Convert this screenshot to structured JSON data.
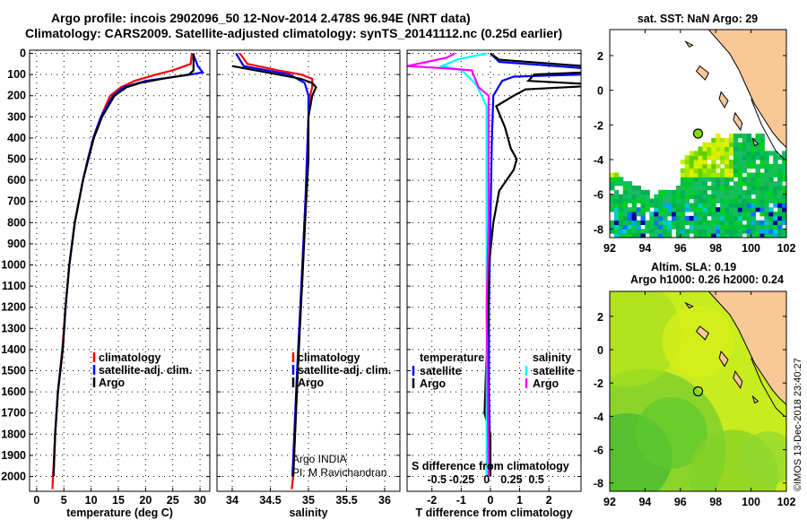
{
  "header": {
    "title1": "Argo profile: incois 2902096_50 12-Nov-2014 2.478S 96.94E (NRT data)",
    "title2": "Climatology: CARS2009. Satellite-adjusted climatology: synTS_20141112.nc (0.25d earlier)"
  },
  "credit": {
    "line1": "Argo INDIA",
    "line2": "PI: M Ravichandran"
  },
  "stamp": "©IMOS 13-Dec-2018 23:40:27",
  "colors": {
    "climatology": "#ff0000",
    "satellite": "#0000ff",
    "argo": "#000000",
    "s_sat": "#00ffff",
    "s_argo": "#ff00ff",
    "land": "#f9c896"
  },
  "chart_data": [
    {
      "type": "line",
      "name": "temperature",
      "xlabel": "temperature (deg C)",
      "ylabel": "",
      "xlim": [
        -1.3,
        31.8
      ],
      "ylim": [
        2070,
        -15
      ],
      "xticks": [
        0,
        5,
        10,
        15,
        20,
        25,
        30
      ],
      "yticks": [
        0,
        100,
        200,
        300,
        400,
        500,
        600,
        700,
        800,
        900,
        1000,
        1100,
        1200,
        1300,
        1400,
        1500,
        1600,
        1700,
        1800,
        1900,
        2000
      ],
      "legend": [
        "climatology",
        "satellite-adj. clim.",
        "Argo"
      ],
      "series": [
        {
          "name": "climatology",
          "color": "#ff0000",
          "depth": [
            0,
            50,
            80,
            100,
            130,
            160,
            200,
            300,
            400,
            500,
            600,
            800,
            1000,
            1200,
            1400,
            1600,
            1800,
            2000,
            2060
          ],
          "values": [
            28.5,
            28.3,
            25,
            22,
            18,
            15.5,
            13.5,
            11.8,
            10.4,
            9.4,
            8.5,
            7,
            6,
            5.3,
            4.7,
            3.9,
            3.4,
            3,
            2.9
          ]
        },
        {
          "name": "satellite-adj. clim.",
          "color": "#0000ff",
          "depth": [
            0,
            60,
            90,
            105,
            130,
            160,
            200,
            300,
            400,
            500,
            600,
            800,
            1000,
            1200,
            1400,
            1600,
            1800,
            2000
          ],
          "values": [
            28.7,
            29.6,
            30.5,
            27,
            20,
            16,
            14,
            11.8,
            10.4,
            9.4,
            8.5,
            7,
            6,
            5.3,
            4.8,
            3.9,
            3.4,
            3.1
          ]
        },
        {
          "name": "Argo",
          "color": "#000000",
          "depth": [
            0,
            80,
            100,
            120,
            140,
            160,
            200,
            300,
            400,
            500,
            600,
            800,
            1000,
            1200,
            1400,
            1600,
            1800,
            2000
          ],
          "values": [
            28.8,
            28.8,
            28,
            23,
            19,
            16.5,
            14.3,
            12,
            10.5,
            9.5,
            8.5,
            7,
            6,
            5.3,
            4.8,
            3.9,
            3.4,
            3.1
          ]
        }
      ]
    },
    {
      "type": "line",
      "name": "salinity",
      "xlabel": "salinity",
      "xlim": [
        33.8,
        36.2
      ],
      "ylim": [
        2070,
        -15
      ],
      "xticks": [
        34,
        34.5,
        35,
        35.5,
        36
      ],
      "legend": [
        "climatology",
        "satellite-adj. clim.",
        "Argo"
      ],
      "series": [
        {
          "name": "climatology",
          "color": "#ff0000",
          "depth": [
            0,
            50,
            80,
            100,
            120,
            160,
            200,
            300,
            500,
            700,
            1000,
            1500,
            2000,
            2060
          ],
          "values": [
            34.1,
            34.2,
            34.6,
            34.9,
            35.05,
            35.05,
            35.02,
            35.0,
            34.98,
            34.96,
            34.92,
            34.86,
            34.8,
            34.78
          ]
        },
        {
          "name": "satellite-adj. clim.",
          "color": "#0000ff",
          "depth": [
            0,
            60,
            100,
            140,
            200,
            300,
            500,
            700,
            1000,
            1500,
            2000
          ],
          "values": [
            34.05,
            34.15,
            34.75,
            34.95,
            35.0,
            35.0,
            34.98,
            34.96,
            34.92,
            34.85,
            34.79
          ]
        },
        {
          "name": "Argo",
          "color": "#000000",
          "depth": [
            60,
            100,
            120,
            140,
            160,
            200,
            300,
            500,
            700,
            1000,
            1500,
            2000
          ],
          "values": [
            34.0,
            34.6,
            34.9,
            35.05,
            35.1,
            35.05,
            35.0,
            35.0,
            34.97,
            34.93,
            34.86,
            34.8
          ]
        }
      ]
    },
    {
      "type": "line",
      "name": "difference",
      "xlabel": "T difference from climatology",
      "x2label": "S difference from climatology",
      "xlim": [
        -2.85,
        3.1
      ],
      "x2lim": [
        -0.8,
        0.95
      ],
      "ylim": [
        2070,
        -15
      ],
      "xticks": [
        -2,
        -1,
        0,
        1,
        2
      ],
      "x2ticks": [
        "-0.5",
        "-0.25",
        "0",
        "0.25",
        "0.5"
      ],
      "legend_t": {
        "title": "temperature",
        "items": [
          "satellite",
          "Argo"
        ]
      },
      "legend_s": {
        "title": "salinity",
        "items": [
          "satellite",
          "Argo"
        ]
      },
      "series": [
        {
          "name": "T satellite",
          "color": "#0000ff",
          "axis": "T",
          "depth": [
            0,
            40,
            70,
            100,
            110,
            130,
            200,
            400,
            800,
            1200,
            1600,
            2000
          ],
          "values": [
            0,
            0.3,
            3.2,
            3.2,
            0.8,
            0.4,
            0.1,
            0.05,
            0,
            -0.05,
            -0.05,
            0
          ]
        },
        {
          "name": "T Argo",
          "color": "#000000",
          "axis": "T",
          "depth": [
            0,
            30,
            60,
            90,
            100,
            130,
            150,
            170,
            200,
            250,
            350,
            450,
            500,
            550,
            650,
            800,
            1000,
            1300,
            1500,
            1700,
            1800,
            2000
          ],
          "values": [
            0,
            0.3,
            3.2,
            3.2,
            1.5,
            1.3,
            4,
            1.2,
            0.8,
            0.2,
            0.5,
            0.7,
            0.9,
            0.8,
            0.3,
            0.1,
            -0.05,
            -0.1,
            -0.15,
            -0.2,
            0,
            0
          ]
        },
        {
          "name": "S satellite",
          "color": "#00ffff",
          "axis": "S",
          "depth": [
            0,
            30,
            60,
            80,
            150,
            250,
            600,
            1200,
            2000
          ],
          "values": [
            0,
            -0.3,
            -0.45,
            -0.25,
            -0.1,
            0,
            0,
            0,
            0
          ]
        },
        {
          "name": "S Argo",
          "color": "#ff00ff",
          "axis": "S",
          "depth": [
            0,
            20,
            60,
            70,
            80,
            160,
            200,
            400,
            800,
            1200,
            2000
          ],
          "values": [
            -0.32,
            -0.4,
            -0.8,
            -0.42,
            -0.15,
            -0.08,
            0.02,
            0.02,
            0.02,
            0,
            0.02
          ]
        }
      ]
    },
    {
      "type": "heatmap",
      "name": "sst-map",
      "title": "sat. SST: NaN Argo: 29",
      "xlim": [
        92,
        102
      ],
      "ylim": [
        -8.5,
        3.5
      ],
      "xticks": [
        92,
        94,
        96,
        98,
        100,
        102
      ],
      "yticks": [
        2,
        0,
        -2,
        -4,
        -6,
        -8
      ],
      "argo_position": [
        97,
        -2.5
      ]
    },
    {
      "type": "heatmap",
      "name": "sla-map",
      "title1": "Altim. SLA: 0.19",
      "title2": "Argo h1000: 0.26 h2000: 0.24",
      "xlim": [
        92,
        102
      ],
      "ylim": [
        -8.5,
        3.5
      ],
      "xticks": [
        92,
        94,
        96,
        98,
        100,
        102
      ],
      "yticks": [
        2,
        0,
        -2,
        -4,
        -6,
        -8
      ],
      "argo_position": [
        97,
        -2.5
      ]
    }
  ]
}
